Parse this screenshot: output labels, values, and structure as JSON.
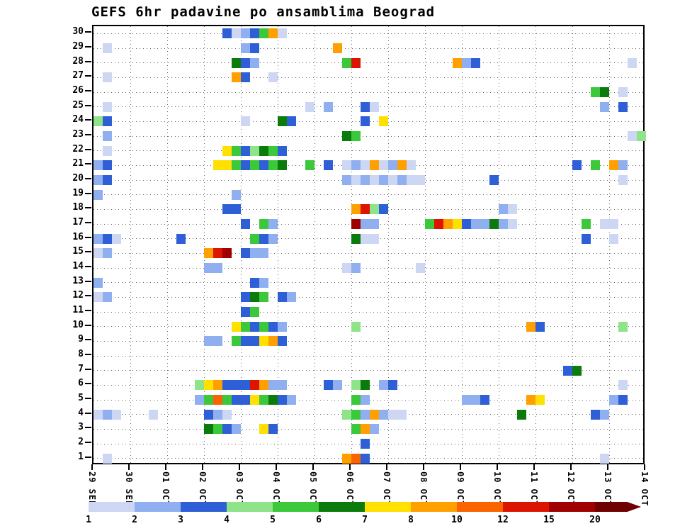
{
  "title": "GEFS 6hr padavine po ansamblima Beograd",
  "chart_data": {
    "type": "heatmap",
    "title": "GEFS 6hr padavine po ansamblima Beograd",
    "x_tick_labels": [
      "29 SEP",
      "30 SEP",
      "01 OCT",
      "02 OCT",
      "03 OCT",
      "04 OCT",
      "05 OCT",
      "06 OCT",
      "07 OCT",
      "08 OCT",
      "09 OCT",
      "10 OCT",
      "11 OCT",
      "12 OCT",
      "13 OCT",
      "14 OCT"
    ],
    "y_tick_labels": [
      1,
      2,
      3,
      4,
      5,
      6,
      7,
      8,
      9,
      10,
      11,
      12,
      13,
      14,
      15,
      16,
      17,
      18,
      19,
      20,
      21,
      22,
      23,
      24,
      25,
      26,
      27,
      28,
      29,
      30
    ],
    "ensemble_members": 30,
    "steps_per_day": 4,
    "total_steps": 60,
    "grid": true,
    "colorbar": {
      "tick_labels": [
        "1",
        "2",
        "3",
        "4",
        "5",
        "6",
        "7",
        "8",
        "10",
        "12",
        "15",
        "20"
      ],
      "thresholds": [
        1,
        2,
        3,
        4,
        5,
        6,
        7,
        8,
        10,
        12,
        15,
        20
      ],
      "colors": [
        "#CDD7F3",
        "#8FAFF0",
        "#2E5FD6",
        "#8FE389",
        "#3BC93B",
        "#0B7C0B",
        "#FFE000",
        "#FFA000",
        "#FA6400",
        "#DC1400",
        "#A00000",
        "#700000"
      ]
    },
    "cells_format": "[ensemble_member, six_hour_step_index_from_29SEP, precip_mm]",
    "cells": [
      [
        30,
        14,
        3.5
      ],
      [
        30,
        15,
        1.5
      ],
      [
        30,
        16,
        2.5
      ],
      [
        30,
        17,
        3.5
      ],
      [
        30,
        18,
        5.5
      ],
      [
        30,
        19,
        9
      ],
      [
        30,
        20,
        1.5
      ],
      [
        29,
        1,
        1.5
      ],
      [
        29,
        16,
        2.5
      ],
      [
        29,
        17,
        3.5
      ],
      [
        29,
        26,
        9
      ],
      [
        28,
        15,
        6.5
      ],
      [
        28,
        16,
        3.5
      ],
      [
        28,
        17,
        2.5
      ],
      [
        28,
        27,
        5.5
      ],
      [
        28,
        28,
        13
      ],
      [
        28,
        39,
        9
      ],
      [
        28,
        40,
        2.5
      ],
      [
        28,
        41,
        3.5
      ],
      [
        28,
        58,
        1.5
      ],
      [
        27,
        1,
        1.5
      ],
      [
        27,
        15,
        9
      ],
      [
        27,
        16,
        3.5
      ],
      [
        27,
        19,
        1.5
      ],
      [
        26,
        54,
        5.5
      ],
      [
        26,
        55,
        6.5
      ],
      [
        26,
        57,
        1.5
      ],
      [
        25,
        1,
        1.5
      ],
      [
        25,
        23,
        1.5
      ],
      [
        25,
        25,
        2.5
      ],
      [
        25,
        29,
        3.5
      ],
      [
        25,
        30,
        1.5
      ],
      [
        25,
        55,
        2.5
      ],
      [
        25,
        57,
        3.5
      ],
      [
        24,
        0,
        4.5
      ],
      [
        24,
        1,
        3.5
      ],
      [
        24,
        16,
        1.5
      ],
      [
        24,
        20,
        6.5
      ],
      [
        24,
        21,
        3.5
      ],
      [
        24,
        29,
        3.5
      ],
      [
        24,
        31,
        7.5
      ],
      [
        23,
        1,
        2.5
      ],
      [
        23,
        27,
        6.5
      ],
      [
        23,
        28,
        5.5
      ],
      [
        23,
        58,
        1.5
      ],
      [
        23,
        59,
        4.5
      ],
      [
        22,
        1,
        1.5
      ],
      [
        22,
        14,
        7.5
      ],
      [
        22,
        15,
        5.5
      ],
      [
        22,
        16,
        3.5
      ],
      [
        22,
        17,
        4.5
      ],
      [
        22,
        18,
        6.5
      ],
      [
        22,
        19,
        5.5
      ],
      [
        22,
        20,
        3.5
      ],
      [
        21,
        0,
        2.5
      ],
      [
        21,
        1,
        3.5
      ],
      [
        21,
        13,
        7.5
      ],
      [
        21,
        14,
        7.5
      ],
      [
        21,
        15,
        5.5
      ],
      [
        21,
        16,
        3.5
      ],
      [
        21,
        17,
        5.5
      ],
      [
        21,
        18,
        3.5
      ],
      [
        21,
        19,
        5.5
      ],
      [
        21,
        20,
        6.5
      ],
      [
        21,
        23,
        5.5
      ],
      [
        21,
        25,
        3.5
      ],
      [
        21,
        27,
        1.5
      ],
      [
        21,
        28,
        2.5
      ],
      [
        21,
        29,
        1.5
      ],
      [
        21,
        30,
        9
      ],
      [
        21,
        31,
        1.5
      ],
      [
        21,
        32,
        2.5
      ],
      [
        21,
        33,
        9
      ],
      [
        21,
        34,
        1.5
      ],
      [
        21,
        52,
        3.5
      ],
      [
        21,
        54,
        5.5
      ],
      [
        21,
        56,
        9
      ],
      [
        21,
        57,
        2.5
      ],
      [
        20,
        0,
        2.5
      ],
      [
        20,
        1,
        3.5
      ],
      [
        20,
        27,
        2.5
      ],
      [
        20,
        28,
        1.5
      ],
      [
        20,
        29,
        2.5
      ],
      [
        20,
        30,
        1.5
      ],
      [
        20,
        31,
        2.5
      ],
      [
        20,
        32,
        1.5
      ],
      [
        20,
        33,
        2.5
      ],
      [
        20,
        34,
        1.5
      ],
      [
        20,
        35,
        1.5
      ],
      [
        20,
        43,
        3.5
      ],
      [
        20,
        57,
        1.5
      ],
      [
        19,
        0,
        2.5
      ],
      [
        19,
        15,
        2.5
      ],
      [
        18,
        14,
        3.5
      ],
      [
        18,
        15,
        3.5
      ],
      [
        18,
        28,
        9
      ],
      [
        18,
        29,
        13
      ],
      [
        18,
        30,
        4.5
      ],
      [
        18,
        31,
        3.5
      ],
      [
        18,
        44,
        2.5
      ],
      [
        18,
        45,
        1.5
      ],
      [
        17,
        16,
        3.5
      ],
      [
        17,
        18,
        5.5
      ],
      [
        17,
        19,
        2.5
      ],
      [
        17,
        28,
        17
      ],
      [
        17,
        29,
        2.5
      ],
      [
        17,
        30,
        2.5
      ],
      [
        17,
        36,
        5.5
      ],
      [
        17,
        37,
        13
      ],
      [
        17,
        38,
        9
      ],
      [
        17,
        39,
        7.5
      ],
      [
        17,
        40,
        3.5
      ],
      [
        17,
        41,
        2.5
      ],
      [
        17,
        42,
        2.5
      ],
      [
        17,
        43,
        6.5
      ],
      [
        17,
        44,
        2.5
      ],
      [
        17,
        45,
        1.5
      ],
      [
        17,
        53,
        5.5
      ],
      [
        17,
        55,
        1.5
      ],
      [
        17,
        56,
        1.5
      ],
      [
        16,
        0,
        2.5
      ],
      [
        16,
        1,
        3.5
      ],
      [
        16,
        2,
        1.5
      ],
      [
        16,
        9,
        3.5
      ],
      [
        16,
        17,
        5.5
      ],
      [
        16,
        18,
        3.5
      ],
      [
        16,
        19,
        2.5
      ],
      [
        16,
        28,
        6.5
      ],
      [
        16,
        29,
        1.5
      ],
      [
        16,
        30,
        1.5
      ],
      [
        16,
        53,
        3.5
      ],
      [
        16,
        56,
        1.5
      ],
      [
        15,
        0,
        1.5
      ],
      [
        15,
        1,
        2.5
      ],
      [
        15,
        12,
        9
      ],
      [
        15,
        13,
        13
      ],
      [
        15,
        14,
        17
      ],
      [
        15,
        16,
        3.5
      ],
      [
        15,
        17,
        2.5
      ],
      [
        15,
        18,
        2.5
      ],
      [
        14,
        12,
        2.5
      ],
      [
        14,
        13,
        2.5
      ],
      [
        14,
        27,
        1.5
      ],
      [
        14,
        28,
        2.5
      ],
      [
        14,
        35,
        1.5
      ],
      [
        13,
        0,
        2.5
      ],
      [
        13,
        17,
        3.5
      ],
      [
        13,
        18,
        2.5
      ],
      [
        12,
        0,
        1.5
      ],
      [
        12,
        1,
        2.5
      ],
      [
        12,
        16,
        3.5
      ],
      [
        12,
        17,
        6.5
      ],
      [
        12,
        18,
        5.5
      ],
      [
        12,
        20,
        3.5
      ],
      [
        12,
        21,
        2.5
      ],
      [
        11,
        16,
        3.5
      ],
      [
        11,
        17,
        5.5
      ],
      [
        10,
        15,
        7.5
      ],
      [
        10,
        16,
        5.5
      ],
      [
        10,
        17,
        3.5
      ],
      [
        10,
        18,
        5.5
      ],
      [
        10,
        19,
        3.5
      ],
      [
        10,
        20,
        2.5
      ],
      [
        10,
        28,
        4.5
      ],
      [
        10,
        47,
        9
      ],
      [
        10,
        48,
        3.5
      ],
      [
        10,
        57,
        4.5
      ],
      [
        9,
        12,
        2.5
      ],
      [
        9,
        13,
        2.5
      ],
      [
        9,
        15,
        5.5
      ],
      [
        9,
        16,
        3.5
      ],
      [
        9,
        17,
        3.5
      ],
      [
        9,
        18,
        7.5
      ],
      [
        9,
        19,
        9
      ],
      [
        9,
        20,
        3.5
      ],
      [
        7,
        51,
        3.5
      ],
      [
        7,
        52,
        6.5
      ],
      [
        6,
        11,
        4.5
      ],
      [
        6,
        12,
        7.5
      ],
      [
        6,
        13,
        9
      ],
      [
        6,
        14,
        3.5
      ],
      [
        6,
        15,
        3.5
      ],
      [
        6,
        16,
        3.5
      ],
      [
        6,
        17,
        13
      ],
      [
        6,
        18,
        9
      ],
      [
        6,
        19,
        2.5
      ],
      [
        6,
        20,
        2.5
      ],
      [
        6,
        25,
        3.5
      ],
      [
        6,
        26,
        2.5
      ],
      [
        6,
        28,
        4.5
      ],
      [
        6,
        29,
        6.5
      ],
      [
        6,
        31,
        2.5
      ],
      [
        6,
        32,
        3.5
      ],
      [
        6,
        57,
        1.5
      ],
      [
        5,
        11,
        2.5
      ],
      [
        5,
        12,
        5.5
      ],
      [
        5,
        13,
        11
      ],
      [
        5,
        14,
        5.5
      ],
      [
        5,
        15,
        3.5
      ],
      [
        5,
        16,
        3.5
      ],
      [
        5,
        17,
        7.5
      ],
      [
        5,
        18,
        5.5
      ],
      [
        5,
        19,
        6.5
      ],
      [
        5,
        20,
        3.5
      ],
      [
        5,
        21,
        2.5
      ],
      [
        5,
        28,
        5.5
      ],
      [
        5,
        29,
        2.5
      ],
      [
        5,
        40,
        2.5
      ],
      [
        5,
        41,
        2.5
      ],
      [
        5,
        42,
        3.5
      ],
      [
        5,
        47,
        9
      ],
      [
        5,
        48,
        7.5
      ],
      [
        5,
        56,
        2.5
      ],
      [
        5,
        57,
        3.5
      ],
      [
        4,
        0,
        1.5
      ],
      [
        4,
        1,
        2.5
      ],
      [
        4,
        2,
        1.5
      ],
      [
        4,
        6,
        1.5
      ],
      [
        4,
        12,
        3.5
      ],
      [
        4,
        13,
        2.5
      ],
      [
        4,
        14,
        1.5
      ],
      [
        4,
        27,
        4.5
      ],
      [
        4,
        28,
        5.5
      ],
      [
        4,
        29,
        2.5
      ],
      [
        4,
        30,
        9
      ],
      [
        4,
        31,
        2.5
      ],
      [
        4,
        32,
        1.5
      ],
      [
        4,
        33,
        1.5
      ],
      [
        4,
        46,
        6.5
      ],
      [
        4,
        54,
        3.5
      ],
      [
        4,
        55,
        2.5
      ],
      [
        3,
        12,
        6.5
      ],
      [
        3,
        13,
        5.5
      ],
      [
        3,
        14,
        3.5
      ],
      [
        3,
        15,
        2.5
      ],
      [
        3,
        18,
        7.5
      ],
      [
        3,
        19,
        3.5
      ],
      [
        3,
        28,
        5.5
      ],
      [
        3,
        29,
        9
      ],
      [
        3,
        30,
        2.5
      ],
      [
        2,
        29,
        3.5
      ],
      [
        1,
        1,
        1.5
      ],
      [
        1,
        27,
        9
      ],
      [
        1,
        28,
        11
      ],
      [
        1,
        29,
        3.5
      ],
      [
        1,
        55,
        1.5
      ]
    ]
  }
}
